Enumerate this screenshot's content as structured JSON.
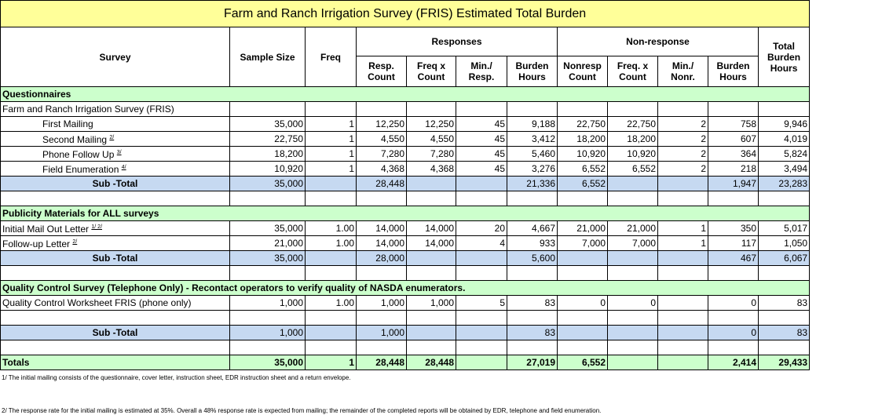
{
  "title": "Farm and Ranch Irrigation Survey (FRIS) Estimated Total Burden",
  "headers": {
    "survey": "Survey",
    "sample_size": "Sample Size",
    "freq": "Freq",
    "responses": "Responses",
    "non_response": "Non-response",
    "total_burden": "Total Burden Hours",
    "sub": [
      "Resp. Count",
      "Freq x Count",
      "Min./ Resp.",
      "Burden Hours",
      "Nonresp Count",
      "Freq. x Count",
      "Min./ Nonr.",
      "Burden Hours"
    ]
  },
  "rows": [
    {
      "type": "section",
      "label": "Questionnaires"
    },
    {
      "type": "plain",
      "label": "Farm and Ranch Irrigation Survey (FRIS)",
      "cells": [
        "",
        "",
        "",
        "",
        "",
        "",
        "",
        "",
        "",
        "",
        ""
      ]
    },
    {
      "type": "indent",
      "label": "First Mailing",
      "sup": "",
      "cells": [
        "35,000",
        "1",
        "12,250",
        "12,250",
        "45",
        "9,188",
        "22,750",
        "22,750",
        "2",
        "758",
        "9,946"
      ]
    },
    {
      "type": "indent",
      "label": "Second Mailing",
      "sup": "2/",
      "cells": [
        "22,750",
        "1",
        "4,550",
        "4,550",
        "45",
        "3,412",
        "18,200",
        "18,200",
        "2",
        "607",
        "4,019"
      ]
    },
    {
      "type": "indent",
      "label": "Phone Follow Up",
      "sup": "3/",
      "cells": [
        "18,200",
        "1",
        "7,280",
        "7,280",
        "45",
        "5,460",
        "10,920",
        "10,920",
        "2",
        "364",
        "5,824"
      ]
    },
    {
      "type": "indent",
      "label": "Field Enumeration",
      "sup": "4/",
      "cells": [
        "10,920",
        "1",
        "4,368",
        "4,368",
        "45",
        "3,276",
        "6,552",
        "6,552",
        "2",
        "218",
        "3,494"
      ]
    },
    {
      "type": "sub",
      "label": "Sub -Total",
      "cells": [
        "35,000",
        "",
        "28,448",
        "",
        "",
        "21,336",
        "6,552",
        "",
        "",
        "1,947",
        "23,283"
      ]
    },
    {
      "type": "plain",
      "label": "",
      "cells": [
        "",
        "",
        "",
        "",
        "",
        "",
        "",
        "",
        "",
        "",
        ""
      ]
    },
    {
      "type": "section",
      "label": "Publicity Materials for ALL surveys"
    },
    {
      "type": "plain",
      "label": "Initial Mail Out Letter",
      "sup": "1/ 2/",
      "cells": [
        "35,000",
        "1.00",
        "14,000",
        "14,000",
        "20",
        "4,667",
        "21,000",
        "21,000",
        "1",
        "350",
        "5,017"
      ]
    },
    {
      "type": "plain",
      "label": "Follow-up Letter",
      "sup": "2/",
      "cells": [
        "21,000",
        "1.00",
        "14,000",
        "14,000",
        "4",
        "933",
        "7,000",
        "7,000",
        "1",
        "117",
        "1,050"
      ]
    },
    {
      "type": "sub",
      "label": "Sub -Total",
      "cells": [
        "35,000",
        "",
        "28,000",
        "",
        "",
        "5,600",
        "",
        "",
        "",
        "467",
        "6,067"
      ]
    },
    {
      "type": "plain",
      "label": "",
      "cells": [
        "",
        "",
        "",
        "",
        "",
        "",
        "",
        "",
        "",
        "",
        ""
      ]
    },
    {
      "type": "section",
      "label": "Quality Control Survey (Telephone Only) - Recontact operators to verify quality of NASDA enumerators."
    },
    {
      "type": "plain",
      "label": "Quality Control Worksheet FRIS (phone only)",
      "cells": [
        "1,000",
        "1.00",
        "1,000",
        "1,000",
        "5",
        "83",
        "0",
        "0",
        "",
        "0",
        "83"
      ]
    },
    {
      "type": "plain",
      "label": "",
      "cells": [
        "",
        "",
        "",
        "",
        "",
        "",
        "",
        "",
        "",
        "",
        ""
      ]
    },
    {
      "type": "sub",
      "label": "Sub -Total",
      "cells": [
        "1,000",
        "",
        "1,000",
        "",
        "",
        "83",
        "",
        "",
        "",
        "0",
        "83"
      ]
    },
    {
      "type": "plain",
      "label": "",
      "cells": [
        "",
        "",
        "",
        "",
        "",
        "",
        "",
        "",
        "",
        "",
        ""
      ]
    },
    {
      "type": "total",
      "label": "Totals",
      "cells": [
        "35,000",
        "1",
        "28,448",
        "28,448",
        "",
        "27,019",
        "6,552",
        "",
        "",
        "2,414",
        "29,433"
      ]
    }
  ],
  "footnotes": [
    "1/ The initial mailing consists of the questionnaire, cover letter, instruction sheet, EDR instruction sheet and a return envelope.",
    "2/ The response rate for the initial mailing is estimated at 35%.  Overall a 48% response rate is expected from mailing;  the remainder of the completed reports will be obtained by EDR, telephone and field enumeration."
  ]
}
